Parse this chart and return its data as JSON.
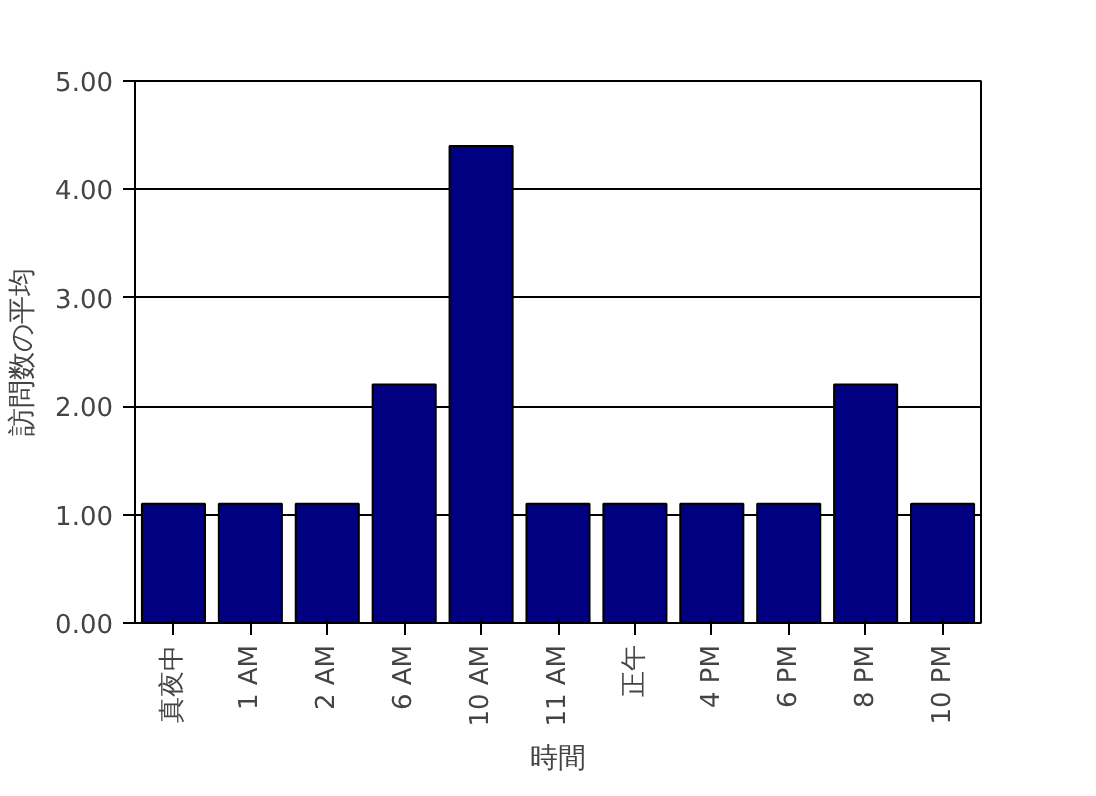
{
  "chart_data": {
    "type": "bar",
    "xlabel": "時間",
    "ylabel": "訪問数の平均",
    "categories": [
      "真夜中",
      "1 AM",
      "2 AM",
      "6 AM",
      "10 AM",
      "11 AM",
      "正午",
      "4 PM",
      "6 PM",
      "8 PM",
      "10 PM"
    ],
    "values": [
      1.1,
      1.1,
      1.1,
      2.2,
      4.4,
      1.1,
      1.1,
      1.1,
      1.1,
      2.2,
      1.1
    ],
    "color": "#000080",
    "ylim": [
      0,
      5
    ],
    "yticks": [
      {
        "value": 0,
        "label": "0.00"
      },
      {
        "value": 1,
        "label": "1.00"
      },
      {
        "value": 2,
        "label": "2.00"
      },
      {
        "value": 3,
        "label": "3.00"
      },
      {
        "value": 4,
        "label": "4.00"
      },
      {
        "value": 5,
        "label": "5.00"
      }
    ],
    "grid": "y"
  }
}
